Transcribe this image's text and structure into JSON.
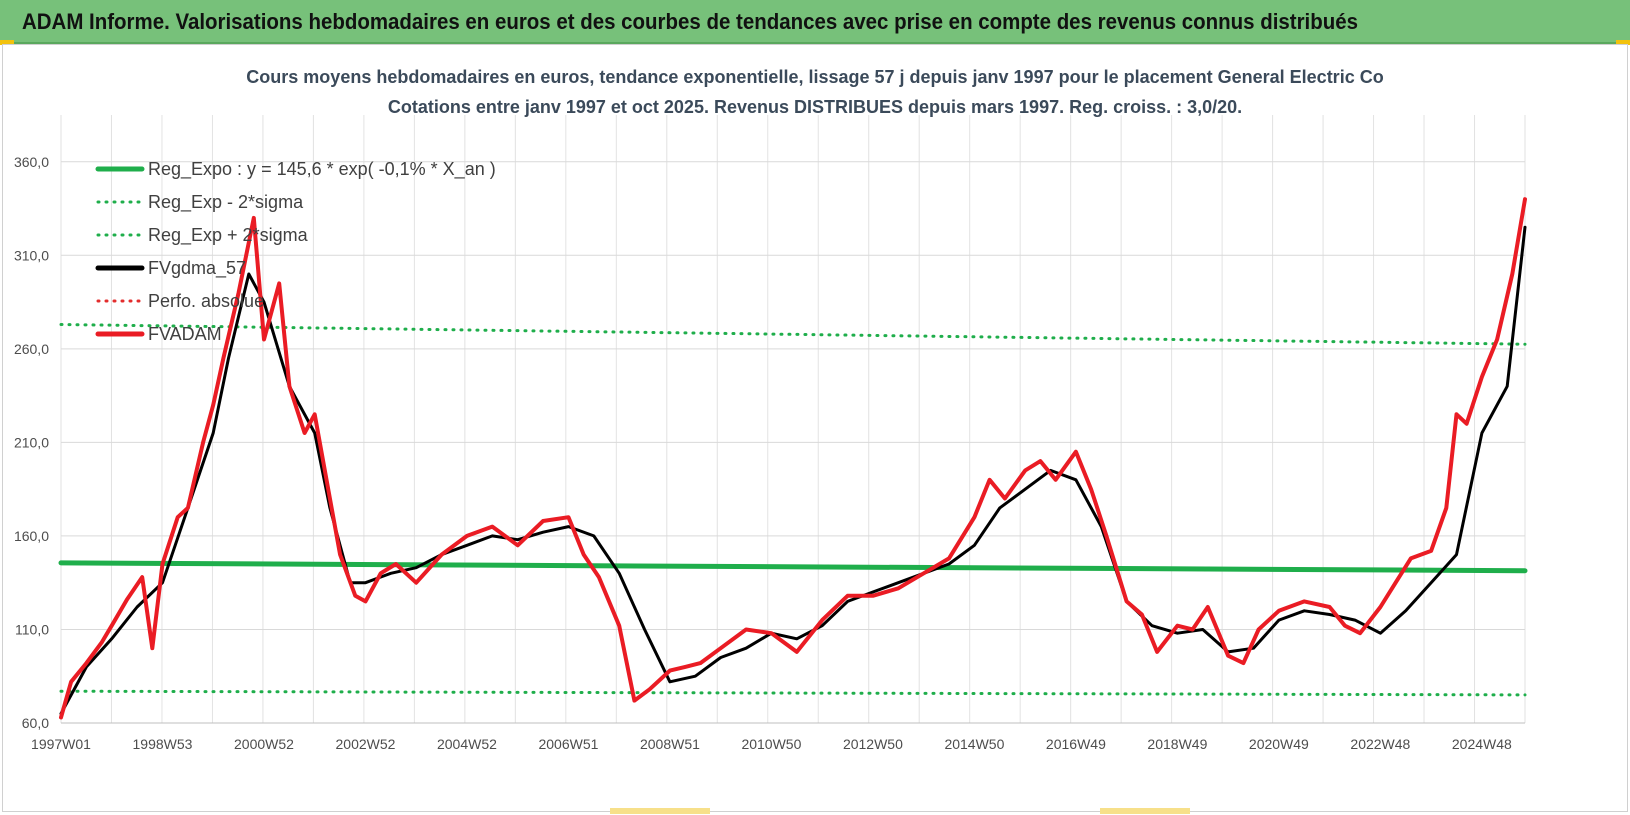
{
  "banner": {
    "title": "ADAM Informe. Valorisations hebdomadaires en euros et des courbes de tendances avec prise en compte des revenus connus distribués"
  },
  "chart_data": {
    "type": "line",
    "title": [
      "Cours moyens hebdomadaires en euros, tendance exponentielle, lissage 57 j depuis janv 1997 pour le placement General Electric Co",
      "Cotations entre janv 1997 et oct 2025. Revenus DISTRIBUES depuis mars 1997.  Reg. croiss. : 3,0/20."
    ],
    "xlabel": "",
    "ylabel": "",
    "ylim": [
      60,
      385
    ],
    "xlim": [
      1997.0,
      2025.85
    ],
    "y_ticks": [
      60,
      110,
      160,
      210,
      260,
      310,
      360
    ],
    "y_tick_labels": [
      "60,0",
      "110,0",
      "160,0",
      "210,0",
      "260,0",
      "310,0",
      "360,0"
    ],
    "x_ticks": [
      1997.0,
      1999.0,
      2001.0,
      2003.0,
      2005.0,
      2007.0,
      2009.0,
      2011.0,
      2013.0,
      2015.0,
      2017.0,
      2019.0,
      2021.0,
      2023.0,
      2025.0
    ],
    "x_tick_labels": [
      "1997W01",
      "1998W53",
      "2000W52",
      "2002W52",
      "2004W52",
      "2006W51",
      "2008W51",
      "2010W50",
      "2012W50",
      "2014W50",
      "2016W49",
      "2018W49",
      "2020W49",
      "2022W48",
      "2024W48"
    ],
    "grid": true,
    "legend_position": "top-left",
    "series": [
      {
        "name": "Reg_Expo : y = 145,6 * exp( -0,1% *  X_an )",
        "color": "#1fae4b",
        "style": "solid",
        "width": 5,
        "x": [
          1997.0,
          2025.85
        ],
        "y": [
          145.6,
          141.4
        ]
      },
      {
        "name": "Reg_Exp - 2*sigma",
        "color": "#1fae4b",
        "style": "dotted",
        "width": 3,
        "x": [
          1997.0,
          2025.85
        ],
        "y": [
          77.0,
          75.0
        ]
      },
      {
        "name": "Reg_Exp + 2*sigma",
        "color": "#1fae4b",
        "style": "dotted",
        "width": 3,
        "x": [
          1997.0,
          2025.85
        ],
        "y": [
          273.0,
          262.5
        ]
      },
      {
        "name": "FVgdma_57",
        "color": "#000000",
        "style": "solid",
        "width": 3,
        "x": [
          1997.0,
          1997.5,
          1998.0,
          1998.5,
          1999.0,
          1999.5,
          2000.0,
          2000.3,
          2000.7,
          2001.0,
          2001.5,
          2002.0,
          2002.3,
          2002.7,
          2003.0,
          2003.5,
          2004.0,
          2004.5,
          2005.0,
          2005.5,
          2006.0,
          2006.5,
          2007.0,
          2007.5,
          2008.0,
          2008.5,
          2009.0,
          2009.5,
          2010.0,
          2010.5,
          2011.0,
          2011.5,
          2012.0,
          2012.5,
          2013.0,
          2013.5,
          2014.0,
          2014.5,
          2015.0,
          2015.5,
          2016.0,
          2016.5,
          2017.0,
          2017.5,
          2018.0,
          2018.5,
          2019.0,
          2019.5,
          2020.0,
          2020.5,
          2021.0,
          2021.5,
          2022.0,
          2022.5,
          2023.0,
          2023.5,
          2024.0,
          2024.5,
          2025.0,
          2025.5,
          2025.85
        ],
        "y": [
          65,
          90,
          105,
          122,
          135,
          175,
          215,
          255,
          300,
          285,
          240,
          215,
          175,
          135,
          135,
          140,
          143,
          150,
          155,
          160,
          158,
          162,
          165,
          160,
          140,
          110,
          82,
          85,
          95,
          100,
          108,
          105,
          112,
          125,
          130,
          135,
          140,
          145,
          155,
          175,
          185,
          195,
          190,
          165,
          125,
          112,
          108,
          110,
          98,
          100,
          115,
          120,
          118,
          115,
          108,
          120,
          135,
          150,
          215,
          240,
          325
        ]
      },
      {
        "name": "Perfo. absolue",
        "color": "#e32d2d",
        "style": "dotted",
        "width": 3,
        "x": [],
        "y": []
      },
      {
        "name": "FVADAM",
        "color": "#ea1c24",
        "style": "solid",
        "width": 4,
        "x": [
          1997.0,
          1997.2,
          1997.5,
          1997.8,
          1998.0,
          1998.3,
          1998.6,
          1998.8,
          1999.0,
          1999.3,
          1999.5,
          1999.8,
          2000.0,
          2000.2,
          2000.5,
          2000.8,
          2001.0,
          2001.3,
          2001.5,
          2001.8,
          2002.0,
          2002.3,
          2002.5,
          2002.8,
          2003.0,
          2003.3,
          2003.6,
          2004.0,
          2004.5,
          2005.0,
          2005.5,
          2006.0,
          2006.5,
          2007.0,
          2007.3,
          2007.6,
          2008.0,
          2008.3,
          2008.6,
          2009.0,
          2009.3,
          2009.6,
          2010.0,
          2010.5,
          2011.0,
          2011.5,
          2012.0,
          2012.5,
          2013.0,
          2013.5,
          2014.0,
          2014.5,
          2015.0,
          2015.3,
          2015.6,
          2016.0,
          2016.3,
          2016.6,
          2017.0,
          2017.3,
          2017.6,
          2018.0,
          2018.3,
          2018.6,
          2019.0,
          2019.3,
          2019.6,
          2020.0,
          2020.3,
          2020.6,
          2021.0,
          2021.5,
          2022.0,
          2022.3,
          2022.6,
          2023.0,
          2023.3,
          2023.6,
          2024.0,
          2024.3,
          2024.5,
          2024.7,
          2025.0,
          2025.3,
          2025.6,
          2025.85
        ],
        "y": [
          63,
          82,
          92,
          103,
          112,
          126,
          138,
          100,
          145,
          170,
          175,
          210,
          230,
          255,
          290,
          330,
          265,
          295,
          240,
          215,
          225,
          180,
          150,
          128,
          125,
          140,
          145,
          135,
          150,
          160,
          165,
          155,
          168,
          170,
          150,
          138,
          112,
          72,
          78,
          88,
          90,
          92,
          100,
          110,
          108,
          98,
          115,
          128,
          128,
          132,
          140,
          148,
          170,
          190,
          180,
          195,
          200,
          190,
          205,
          185,
          160,
          125,
          118,
          98,
          112,
          110,
          122,
          96,
          92,
          110,
          120,
          125,
          122,
          112,
          108,
          122,
          135,
          148,
          152,
          175,
          225,
          220,
          245,
          265,
          300,
          340
        ]
      }
    ]
  }
}
